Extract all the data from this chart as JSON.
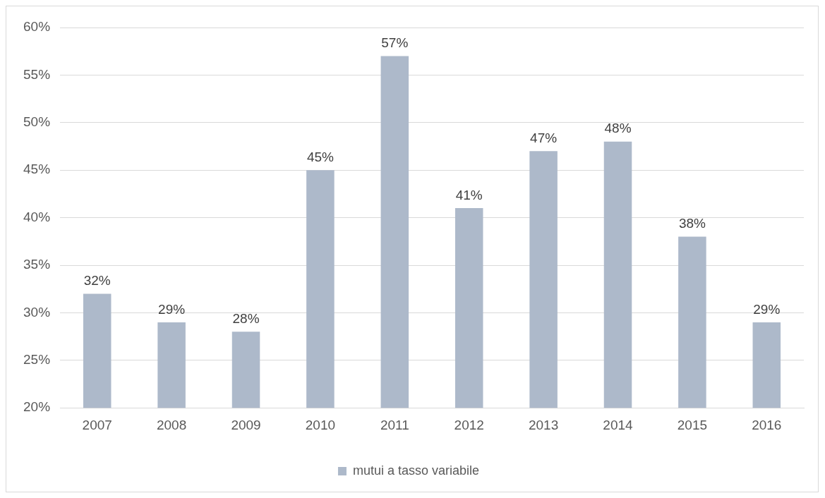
{
  "chart_data": {
    "type": "bar",
    "categories": [
      "2007",
      "2008",
      "2009",
      "2010",
      "2011",
      "2012",
      "2013",
      "2014",
      "2015",
      "2016"
    ],
    "series": [
      {
        "name": "mutui a tasso variabile",
        "color": "#adb9ca",
        "values": [
          32,
          29,
          28,
          45,
          57,
          41,
          47,
          48,
          38,
          29
        ],
        "value_labels": [
          "32%",
          "29%",
          "28%",
          "45%",
          "57%",
          "41%",
          "47%",
          "48%",
          "38%",
          "29%"
        ]
      }
    ],
    "ylim": [
      20,
      60
    ],
    "yticks": [
      {
        "value": 20,
        "label": "20%"
      },
      {
        "value": 25,
        "label": "25%"
      },
      {
        "value": 30,
        "label": "30%"
      },
      {
        "value": 35,
        "label": "35%"
      },
      {
        "value": 40,
        "label": "40%"
      },
      {
        "value": 45,
        "label": "45%"
      },
      {
        "value": 50,
        "label": "50%"
      },
      {
        "value": 55,
        "label": "55%"
      },
      {
        "value": 60,
        "label": "60%"
      }
    ],
    "grid": "y",
    "legend": "bottom"
  }
}
